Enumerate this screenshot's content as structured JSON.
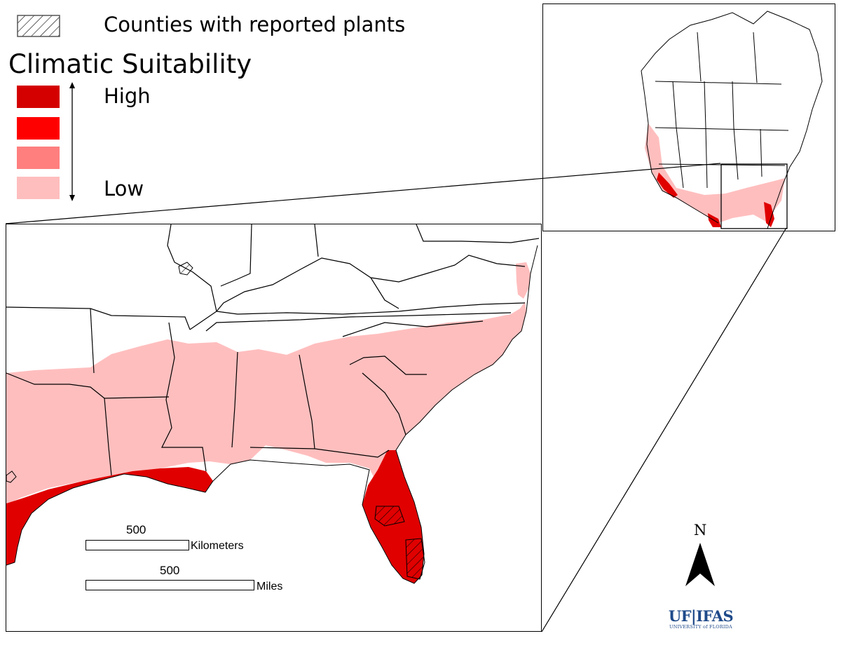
{
  "legend": {
    "hatch_label": "Counties with reported plants",
    "title": "Climatic Suitability",
    "high_label": "High",
    "low_label": "Low",
    "classes": [
      {
        "level": 4,
        "color": "#d40000"
      },
      {
        "level": 3,
        "color": "#ff0000"
      },
      {
        "level": 2,
        "color": "#ff7f7f"
      },
      {
        "level": 1,
        "color": "#ffbebe"
      }
    ]
  },
  "scale_bars": {
    "km_value": "500",
    "km_unit": "Kilometers",
    "mi_value": "500",
    "mi_unit": "Miles"
  },
  "north_arrow": {
    "label": "N"
  },
  "logo": {
    "main": "UF|IFAS",
    "sub": "UNIVERSITY of FLORIDA"
  },
  "colors": {
    "low": "#ffbebe",
    "high": "#e00000",
    "hatch": "#000000",
    "border": "#000000",
    "logo": "#1f4a8a"
  }
}
